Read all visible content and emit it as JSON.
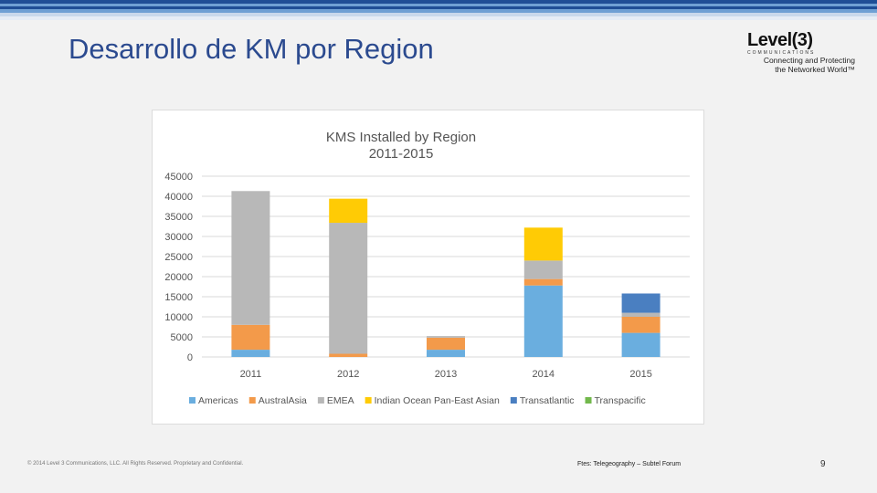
{
  "slide": {
    "title": "Desarrollo de KM por Region",
    "footer_left": "© 2014 Level 3 Communications, LLC. All Rights Reserved. Proprietary and Confidential.",
    "footer_source": "Ftes: Telegeography – Subtel Forum",
    "page_number": "9"
  },
  "logo": {
    "main": "Level(3)",
    "sub": "COMMUNICATIONS",
    "tagline_1": "Connecting and Protecting",
    "tagline_2": "the Networked World™"
  },
  "colors": {
    "title": "#2b4a8f",
    "band_top": "#1f4e96",
    "band_mid": "#6fa0d4",
    "band_low": "#c9d9ec"
  },
  "chart_data": {
    "type": "bar",
    "stacked": true,
    "title": "KMS Installed by Region",
    "subtitle": "2011-2015",
    "categories": [
      "2011",
      "2012",
      "2013",
      "2014",
      "2015"
    ],
    "ylim": [
      0,
      45000
    ],
    "yticks": [
      0,
      5000,
      10000,
      15000,
      20000,
      25000,
      30000,
      35000,
      40000,
      45000
    ],
    "grid": true,
    "legend_position": "bottom",
    "series": [
      {
        "name": "Americas",
        "color": "#6aaedf",
        "values": [
          1800,
          0,
          1800,
          17800,
          6000
        ]
      },
      {
        "name": "AustralAsia",
        "color": "#f39a4a",
        "values": [
          6200,
          800,
          3000,
          1600,
          4000
        ]
      },
      {
        "name": "EMEA",
        "color": "#b8b8b8",
        "values": [
          33300,
          32600,
          400,
          4600,
          1000
        ]
      },
      {
        "name": "Indian Ocean Pan-East Asian",
        "color": "#ffcb05",
        "values": [
          0,
          6000,
          0,
          8200,
          0
        ]
      },
      {
        "name": "Transatlantic",
        "color": "#4a7fc1",
        "values": [
          0,
          0,
          0,
          0,
          4800
        ]
      },
      {
        "name": "Transpacific",
        "color": "#72b84c",
        "values": [
          0,
          0,
          0,
          0,
          0
        ]
      }
    ]
  }
}
